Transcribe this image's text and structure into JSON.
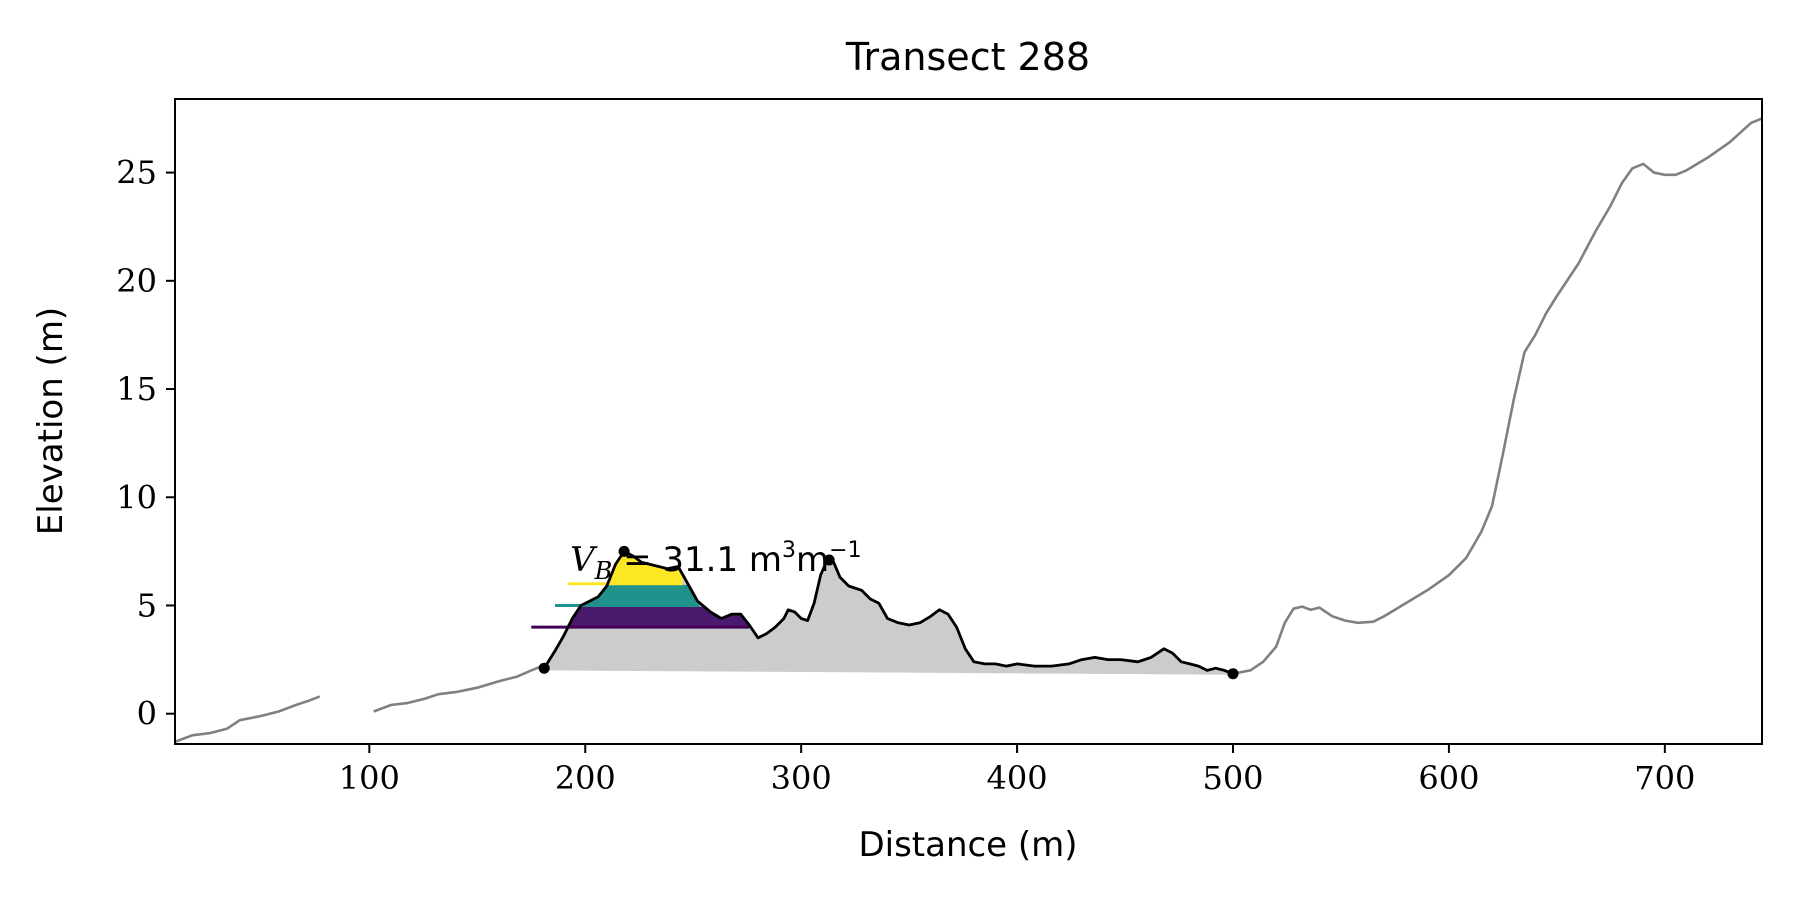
{
  "chart_data": {
    "type": "line",
    "title": "Transect 288",
    "xlabel": "Distance (m)",
    "ylabel": "Elevation (m)",
    "xlim": [
      10,
      745
    ],
    "ylim": [
      -1.4,
      28.4
    ],
    "xticks": [
      100,
      200,
      300,
      400,
      500,
      600,
      700
    ],
    "yticks": [
      0,
      5,
      10,
      15,
      20,
      25
    ],
    "grid": false,
    "annotation": {
      "var": "V",
      "sub": "B",
      "eq": " = 31.1 m",
      "sup1": "3",
      "mid": "m",
      "sup2": "−1",
      "x": 193,
      "y": 6.6
    },
    "profile": {
      "color": "#808080",
      "segments": [
        [
          [
            10,
            -1.3
          ],
          [
            18,
            -1.0
          ],
          [
            26,
            -0.9
          ],
          [
            34,
            -0.7
          ],
          [
            40,
            -0.3
          ],
          [
            50,
            -0.1
          ],
          [
            58,
            0.1
          ],
          [
            66,
            0.4
          ],
          [
            72,
            0.6
          ],
          [
            77,
            0.8
          ]
        ],
        [
          [
            102,
            0.1
          ],
          [
            110,
            0.4
          ],
          [
            118,
            0.5
          ],
          [
            126,
            0.7
          ],
          [
            132,
            0.9
          ],
          [
            140,
            1.0
          ],
          [
            150,
            1.2
          ],
          [
            160,
            1.5
          ],
          [
            168,
            1.7
          ],
          [
            175,
            2.0
          ],
          [
            180,
            2.2
          ],
          [
            181,
            2.1
          ]
        ],
        [
          [
            500,
            1.85
          ],
          [
            508,
            2.0
          ],
          [
            514,
            2.4
          ],
          [
            520,
            3.1
          ],
          [
            524,
            4.2
          ],
          [
            528,
            4.85
          ],
          [
            532,
            4.95
          ],
          [
            536,
            4.8
          ],
          [
            540,
            4.9
          ],
          [
            546,
            4.5
          ],
          [
            552,
            4.3
          ],
          [
            558,
            4.2
          ],
          [
            565,
            4.25
          ],
          [
            570,
            4.5
          ],
          [
            580,
            5.1
          ],
          [
            590,
            5.7
          ],
          [
            600,
            6.4
          ],
          [
            608,
            7.2
          ],
          [
            615,
            8.4
          ],
          [
            620,
            9.6
          ],
          [
            625,
            12.0
          ],
          [
            630,
            14.5
          ],
          [
            635,
            16.7
          ],
          [
            640,
            17.5
          ],
          [
            645,
            18.5
          ],
          [
            650,
            19.3
          ],
          [
            660,
            20.8
          ],
          [
            668,
            22.3
          ],
          [
            675,
            23.5
          ],
          [
            680,
            24.5
          ],
          [
            685,
            25.2
          ],
          [
            690,
            25.4
          ],
          [
            695,
            25.0
          ],
          [
            700,
            24.9
          ],
          [
            705,
            24.9
          ],
          [
            710,
            25.1
          ],
          [
            720,
            25.7
          ],
          [
            730,
            26.4
          ],
          [
            740,
            27.3
          ],
          [
            745,
            27.5
          ]
        ]
      ]
    },
    "dune": {
      "color": "#000000",
      "fill": "#cccccc",
      "points": [
        [
          181,
          2.1
        ],
        [
          186,
          2.9
        ],
        [
          190,
          3.6
        ],
        [
          194,
          4.4
        ],
        [
          198,
          5.0
        ],
        [
          202,
          5.2
        ],
        [
          206,
          5.4
        ],
        [
          210,
          5.9
        ],
        [
          214,
          6.9
        ],
        [
          218,
          7.5
        ],
        [
          222,
          7.3
        ],
        [
          226,
          7.0
        ],
        [
          230,
          6.9
        ],
        [
          234,
          6.8
        ],
        [
          238,
          6.7
        ],
        [
          243,
          6.8
        ],
        [
          247,
          6.1
        ],
        [
          252,
          5.2
        ],
        [
          258,
          4.7
        ],
        [
          263,
          4.4
        ],
        [
          268,
          4.6
        ],
        [
          272,
          4.6
        ],
        [
          276,
          4.1
        ],
        [
          280,
          3.5
        ],
        [
          284,
          3.7
        ],
        [
          288,
          4.0
        ],
        [
          292,
          4.4
        ],
        [
          294,
          4.8
        ],
        [
          297,
          4.7
        ],
        [
          300,
          4.4
        ],
        [
          303,
          4.3
        ],
        [
          306,
          5.1
        ],
        [
          309,
          6.4
        ],
        [
          312,
          7.1
        ],
        [
          315,
          7.0
        ],
        [
          318,
          6.3
        ],
        [
          322,
          5.9
        ],
        [
          328,
          5.7
        ],
        [
          332,
          5.3
        ],
        [
          336,
          5.1
        ],
        [
          340,
          4.4
        ],
        [
          345,
          4.2
        ],
        [
          350,
          4.1
        ],
        [
          355,
          4.2
        ],
        [
          360,
          4.5
        ],
        [
          364,
          4.8
        ],
        [
          368,
          4.6
        ],
        [
          372,
          4.0
        ],
        [
          376,
          3.0
        ],
        [
          380,
          2.4
        ],
        [
          385,
          2.3
        ],
        [
          390,
          2.3
        ],
        [
          395,
          2.2
        ],
        [
          400,
          2.3
        ],
        [
          408,
          2.2
        ],
        [
          416,
          2.2
        ],
        [
          424,
          2.3
        ],
        [
          430,
          2.5
        ],
        [
          436,
          2.6
        ],
        [
          442,
          2.5
        ],
        [
          448,
          2.5
        ],
        [
          456,
          2.4
        ],
        [
          462,
          2.6
        ],
        [
          468,
          3.0
        ],
        [
          472,
          2.8
        ],
        [
          476,
          2.4
        ],
        [
          480,
          2.3
        ],
        [
          484,
          2.2
        ],
        [
          488,
          2.0
        ],
        [
          492,
          2.1
        ],
        [
          496,
          2.0
        ],
        [
          500,
          1.85
        ]
      ],
      "base_line": [
        [
          181,
          2.0
        ],
        [
          500,
          1.8
        ]
      ],
      "markers": [
        [
          181,
          2.1
        ],
        [
          218,
          7.5
        ],
        [
          313,
          7.1
        ],
        [
          500,
          1.85
        ]
      ]
    },
    "levels": [
      {
        "name": "level-1",
        "y": 4.0,
        "x0": 175,
        "x1": 276,
        "fill_to_y": 4.95,
        "color": "#440154",
        "fill": "#4a1a6e"
      },
      {
        "name": "level-2",
        "y": 5.0,
        "x0": 186,
        "x1": 253,
        "fill_to_y": 5.95,
        "color": "#21918c",
        "fill": "#21918c"
      },
      {
        "name": "level-3",
        "y": 6.0,
        "x0": 192,
        "x1": 245,
        "fill_to_y": 8.0,
        "color": "#fde725",
        "fill": "#fde725"
      }
    ]
  }
}
